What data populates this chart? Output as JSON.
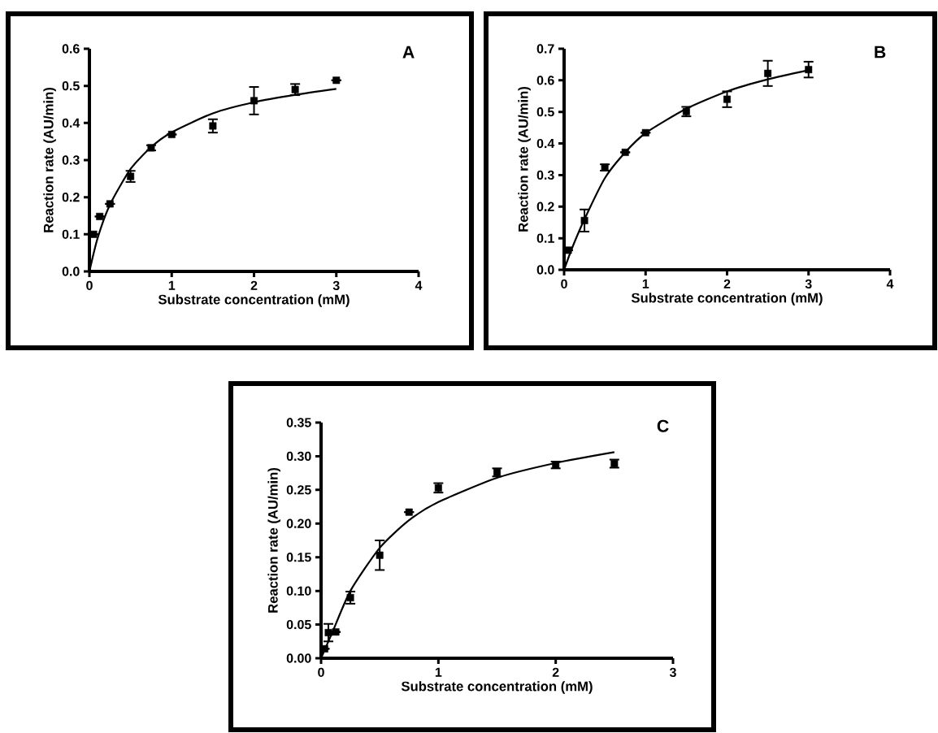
{
  "chart_data": [
    {
      "type": "scatter",
      "title": "A",
      "xlabel": "Substrate concentration (mM)",
      "ylabel": "Reaction rate (AU/min)",
      "xlim": [
        0,
        4
      ],
      "xticks": [
        0,
        1,
        2,
        3,
        4
      ],
      "ylim": [
        0,
        0.6
      ],
      "yticks": [
        {
          "value": 0,
          "label": "0.0"
        },
        0.1,
        0.2,
        0.3,
        0.4,
        0.5,
        0.6
      ],
      "marker": "square",
      "grid": false,
      "series": [
        {
          "type": "scatter",
          "color": "#000000",
          "x": [
            0.05,
            0.125,
            0.25,
            0.5,
            0.75,
            1,
            1.5,
            2,
            2.5,
            3
          ],
          "values": [
            0.1,
            0.148,
            0.182,
            0.256,
            0.333,
            0.369,
            0.392,
            0.46,
            0.49,
            0.515
          ],
          "errors": [
            null,
            null,
            null,
            0.015,
            0.007,
            null,
            0.018,
            0.037,
            0.015,
            null
          ]
        },
        {
          "type": "line",
          "marker": "none",
          "color": "#000000",
          "x": [
            0,
            0.1,
            0.25,
            0.5,
            0.75,
            1,
            1.5,
            2,
            2.5,
            3
          ],
          "values": [
            0,
            0.09,
            0.18,
            0.276,
            0.335,
            0.375,
            0.426,
            0.456,
            0.476,
            0.492
          ]
        }
      ]
    },
    {
      "type": "scatter",
      "title": "B",
      "xlabel": "Substrate concentration (mM)",
      "ylabel": "Reaction rate (AU/min)",
      "xlim": [
        0,
        4
      ],
      "xticks": [
        0,
        1,
        2,
        3,
        4
      ],
      "ylim": [
        0,
        0.7
      ],
      "yticks": [
        {
          "value": 0,
          "label": "0.0"
        },
        0.1,
        0.2,
        0.3,
        0.4,
        0.5,
        0.6,
        0.7
      ],
      "marker": "square",
      "grid": false,
      "series": [
        {
          "type": "scatter",
          "color": "#000000",
          "x": [
            0.05,
            0.25,
            0.5,
            0.75,
            1,
            1.5,
            2,
            2.5,
            3
          ],
          "values": [
            0.062,
            0.156,
            0.324,
            0.372,
            0.434,
            0.501,
            0.54,
            0.622,
            0.634
          ],
          "errors": [
            null,
            0.035,
            0.01,
            null,
            null,
            0.015,
            0.025,
            0.04,
            0.025
          ]
        },
        {
          "type": "line",
          "marker": "none",
          "color": "#000000",
          "x": [
            0,
            0.1,
            0.25,
            0.5,
            0.75,
            1,
            1.5,
            2,
            2.5,
            3
          ],
          "values": [
            0,
            0.07,
            0.16,
            0.29,
            0.372,
            0.433,
            0.51,
            0.565,
            0.603,
            0.632
          ]
        }
      ]
    },
    {
      "type": "scatter",
      "title": "C",
      "xlabel": "Substrate concentration (mM)",
      "ylabel": "Reaction rate (AU/min)",
      "xlim": [
        0,
        3
      ],
      "xticks": [
        0,
        1,
        2,
        3
      ],
      "ylim": [
        0,
        0.35
      ],
      "yticks": [
        {
          "value": 0,
          "label": "0.00"
        },
        0.05,
        {
          "value": 0.1,
          "label": "0.10"
        },
        0.15,
        {
          "value": 0.2,
          "label": "0.20"
        },
        0.25,
        {
          "value": 0.3,
          "label": "0.30"
        },
        0.35
      ],
      "marker": "square",
      "grid": false,
      "series": [
        {
          "type": "scatter",
          "color": "#000000",
          "x": [
            0.03,
            0.0625,
            0.125,
            0.25,
            0.5,
            0.75,
            1,
            1.5,
            2,
            2.5
          ],
          "values": [
            0.014,
            0.038,
            0.039,
            0.09,
            0.153,
            0.217,
            0.253,
            0.276,
            0.287,
            0.289
          ],
          "errors": [
            null,
            0.013,
            null,
            0.009,
            0.022,
            null,
            0.007,
            0.006,
            0.005,
            0.006
          ]
        },
        {
          "type": "line",
          "marker": "none",
          "color": "#000000",
          "x": [
            0,
            0.1,
            0.25,
            0.5,
            0.75,
            1,
            1.5,
            2,
            2.5
          ],
          "values": [
            0,
            0.04,
            0.1,
            0.164,
            0.205,
            0.232,
            0.268,
            0.29,
            0.306
          ]
        }
      ]
    }
  ]
}
